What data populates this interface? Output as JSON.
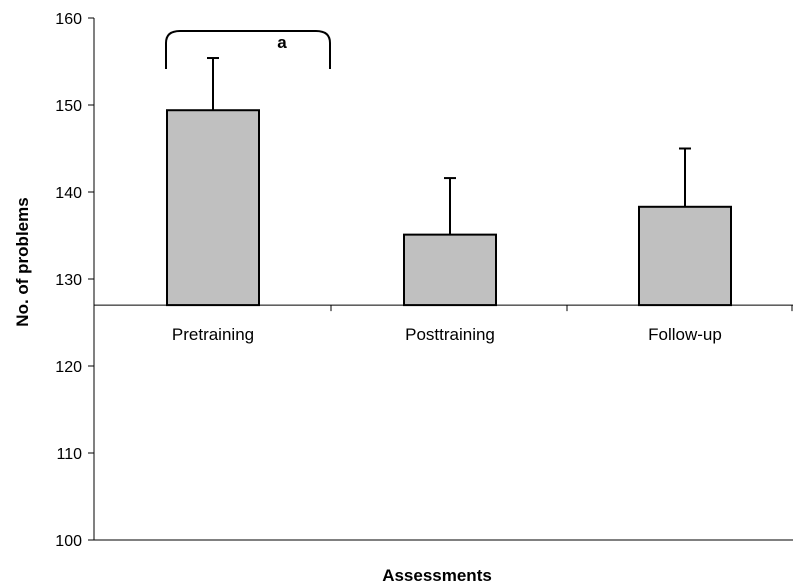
{
  "chart_data": {
    "type": "bar",
    "title": "",
    "xlabel": "Assessments",
    "ylabel": "No. of problems",
    "categories": [
      "Pretraining",
      "Posttraining",
      "Follow-up"
    ],
    "values": [
      149.4,
      135.1,
      138.3
    ],
    "error_upper": [
      155.4,
      141.6,
      145.0
    ],
    "baseline": 127,
    "ylim": [
      100,
      160
    ],
    "yticks": [
      100,
      110,
      120,
      130,
      140,
      150,
      160
    ],
    "ytick_labels": [
      "100",
      "110",
      "120",
      "130",
      "140",
      "150",
      "160"
    ],
    "grid": false,
    "legend": "none",
    "bar_color": "#c0c0c0",
    "annotations": [
      {
        "text": "a",
        "type": "bracket",
        "over_category": "Pretraining"
      }
    ]
  }
}
